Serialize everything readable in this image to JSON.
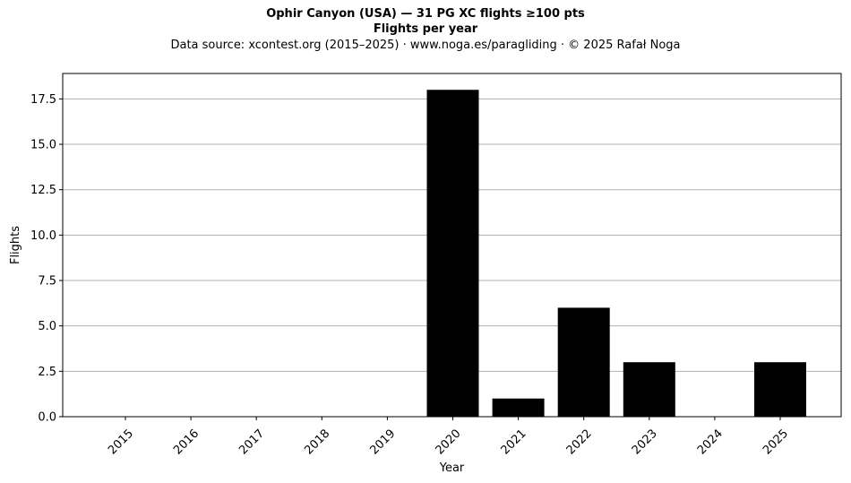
{
  "chart_data": {
    "type": "bar",
    "title": "Ophir Canyon (USA)  —  31 PG XC flights ≥100 pts",
    "subtitle": "Flights per year",
    "source_note": "Data source: xcontest.org (2015–2025)  ·  www.noga.es/paragliding  ·  © 2025 Rafał Noga",
    "xlabel": "Year",
    "ylabel": "Flights",
    "categories": [
      "2015",
      "2016",
      "2017",
      "2018",
      "2019",
      "2020",
      "2021",
      "2022",
      "2023",
      "2024",
      "2025"
    ],
    "values": [
      0,
      0,
      0,
      0,
      0,
      18,
      1,
      6,
      3,
      0,
      3
    ],
    "ylim": [
      0,
      18.9
    ],
    "yticks": [
      0.0,
      2.5,
      5.0,
      7.5,
      10.0,
      12.5,
      15.0,
      17.5
    ],
    "ytick_labels": [
      "0.0",
      "2.5",
      "5.0",
      "7.5",
      "10.0",
      "12.5",
      "15.0",
      "17.5"
    ],
    "grid": "y",
    "bar_color": "#000000",
    "grid_color": "#b0b0b0"
  }
}
